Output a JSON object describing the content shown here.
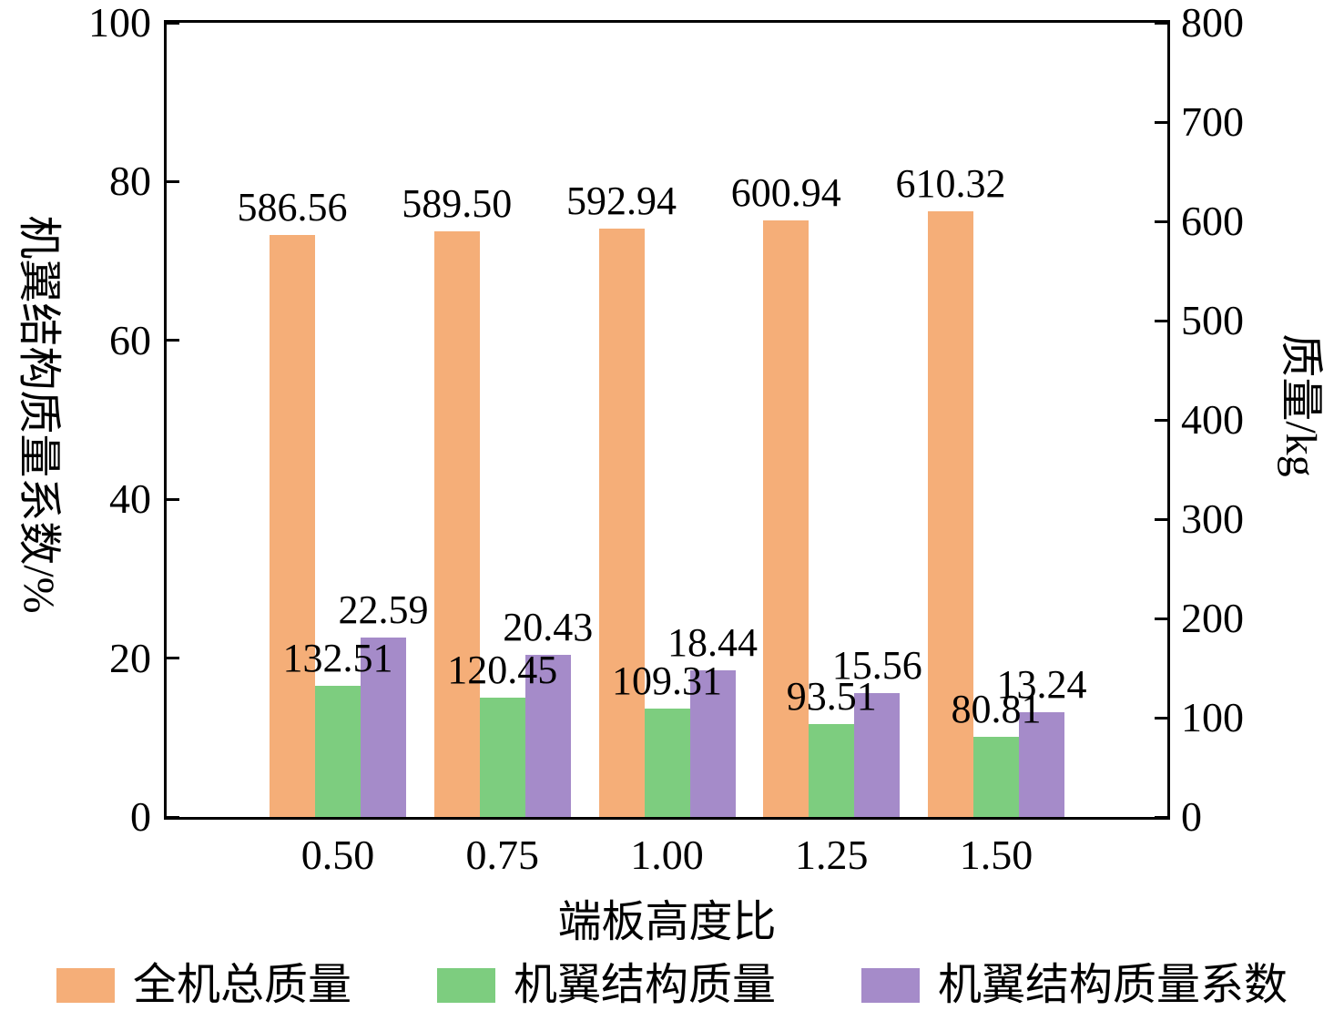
{
  "chart_data": {
    "type": "bar",
    "categories": [
      "0.50",
      "0.75",
      "1.00",
      "1.25",
      "1.50"
    ],
    "series": [
      {
        "id": "total-aircraft-mass",
        "name": "全机总质量",
        "axis": "right",
        "color": "#F5AE78",
        "values": [
          586.56,
          589.5,
          592.94,
          600.94,
          610.32
        ]
      },
      {
        "id": "wing-structure-mass",
        "name": "机翼结构质量",
        "axis": "right",
        "color": "#7DCD7F",
        "values": [
          132.51,
          120.45,
          109.31,
          93.51,
          80.81
        ]
      },
      {
        "id": "wing-structure-mass-coefficient",
        "name": "机翼结构质量系数",
        "axis": "left",
        "color": "#A58BC9",
        "values": [
          22.59,
          20.43,
          18.44,
          15.56,
          13.24
        ]
      }
    ],
    "xlabel": "端板高度比",
    "ylabel_left": "机翼结构质量系数/%",
    "ylabel_right": "质量/kg",
    "ylim_left": [
      0,
      100
    ],
    "ylim_right": [
      0,
      800
    ],
    "yticks_left": [
      0,
      20,
      40,
      60,
      80,
      100
    ],
    "yticks_right": [
      0,
      100,
      200,
      300,
      400,
      500,
      600,
      700,
      800
    ],
    "value_label_decimals": 2,
    "grid": false,
    "legend_position": "bottom",
    "axis_color": "#000000",
    "background_color": "#ffffff"
  }
}
